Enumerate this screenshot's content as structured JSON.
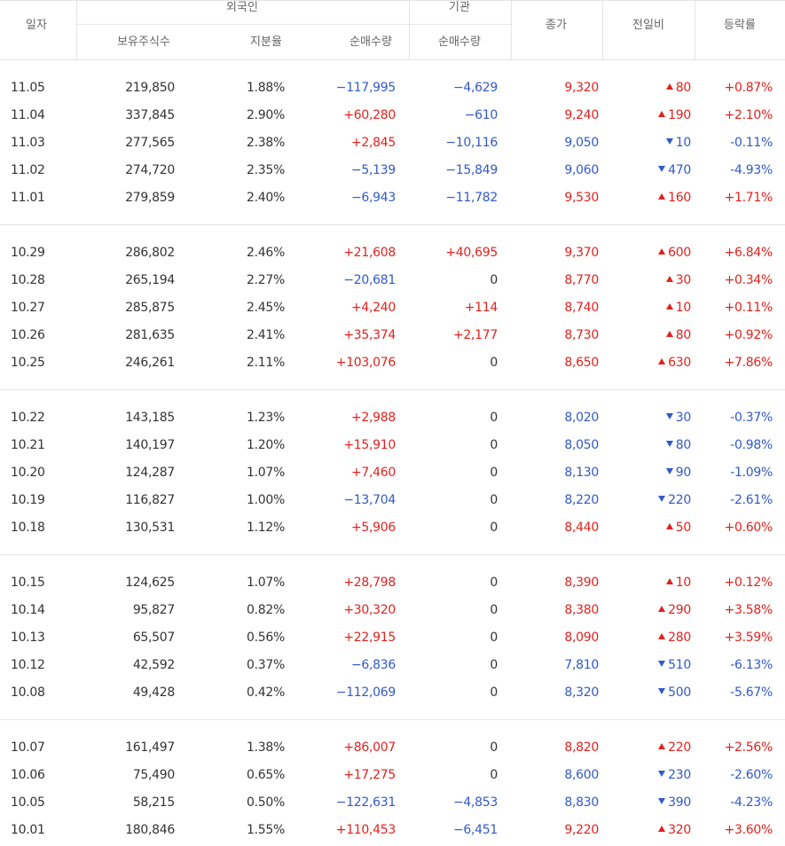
{
  "header": {
    "date": "일자",
    "foreign": "외국인",
    "inst": "기관",
    "close": "종가",
    "change": "전일비",
    "rate": "등락률",
    "holdings": "보유주식수",
    "ratio": "지분율",
    "foreign_net": "순매수량",
    "inst_net": "순매수량"
  },
  "groups": [
    {
      "rows": [
        [
          "11.05",
          "219,850",
          "1.88%",
          "−117,995",
          "−4,629",
          "9,320",
          "up",
          "80",
          "+0.87%"
        ],
        [
          "11.04",
          "337,845",
          "2.90%",
          "+60,280",
          "−610",
          "9,240",
          "up",
          "190",
          "+2.10%"
        ],
        [
          "11.03",
          "277,565",
          "2.38%",
          "+2,845",
          "−10,116",
          "9,050",
          "down",
          "10",
          "-0.11%"
        ],
        [
          "11.02",
          "274,720",
          "2.35%",
          "−5,139",
          "−15,849",
          "9,060",
          "down",
          "470",
          "-4.93%"
        ],
        [
          "11.01",
          "279,859",
          "2.40%",
          "−6,943",
          "−11,782",
          "9,530",
          "up",
          "160",
          "+1.71%"
        ]
      ]
    },
    {
      "rows": [
        [
          "10.29",
          "286,802",
          "2.46%",
          "+21,608",
          "+40,695",
          "9,370",
          "up",
          "600",
          "+6.84%"
        ],
        [
          "10.28",
          "265,194",
          "2.27%",
          "−20,681",
          "0",
          "8,770",
          "up",
          "30",
          "+0.34%"
        ],
        [
          "10.27",
          "285,875",
          "2.45%",
          "+4,240",
          "+114",
          "8,740",
          "up",
          "10",
          "+0.11%"
        ],
        [
          "10.26",
          "281,635",
          "2.41%",
          "+35,374",
          "+2,177",
          "8,730",
          "up",
          "80",
          "+0.92%"
        ],
        [
          "10.25",
          "246,261",
          "2.11%",
          "+103,076",
          "0",
          "8,650",
          "up",
          "630",
          "+7.86%"
        ]
      ]
    },
    {
      "rows": [
        [
          "10.22",
          "143,185",
          "1.23%",
          "+2,988",
          "0",
          "8,020",
          "down",
          "30",
          "-0.37%"
        ],
        [
          "10.21",
          "140,197",
          "1.20%",
          "+15,910",
          "0",
          "8,050",
          "down",
          "80",
          "-0.98%"
        ],
        [
          "10.20",
          "124,287",
          "1.07%",
          "+7,460",
          "0",
          "8,130",
          "down",
          "90",
          "-1.09%"
        ],
        [
          "10.19",
          "116,827",
          "1.00%",
          "−13,704",
          "0",
          "8,220",
          "down",
          "220",
          "-2.61%"
        ],
        [
          "10.18",
          "130,531",
          "1.12%",
          "+5,906",
          "0",
          "8,440",
          "up",
          "50",
          "+0.60%"
        ]
      ]
    },
    {
      "rows": [
        [
          "10.15",
          "124,625",
          "1.07%",
          "+28,798",
          "0",
          "8,390",
          "up",
          "10",
          "+0.12%"
        ],
        [
          "10.14",
          "95,827",
          "0.82%",
          "+30,320",
          "0",
          "8,380",
          "up",
          "290",
          "+3.58%"
        ],
        [
          "10.13",
          "65,507",
          "0.56%",
          "+22,915",
          "0",
          "8,090",
          "up",
          "280",
          "+3.59%"
        ],
        [
          "10.12",
          "42,592",
          "0.37%",
          "−6,836",
          "0",
          "7,810",
          "down",
          "510",
          "-6.13%"
        ],
        [
          "10.08",
          "49,428",
          "0.42%",
          "−112,069",
          "0",
          "8,320",
          "down",
          "500",
          "-5.67%"
        ]
      ]
    },
    {
      "rows": [
        [
          "10.07",
          "161,497",
          "1.38%",
          "+86,007",
          "0",
          "8,820",
          "up",
          "220",
          "+2.56%"
        ],
        [
          "10.06",
          "75,490",
          "0.65%",
          "+17,275",
          "0",
          "8,600",
          "down",
          "230",
          "-2.60%"
        ],
        [
          "10.05",
          "58,215",
          "0.50%",
          "−122,631",
          "−4,853",
          "8,830",
          "down",
          "390",
          "-4.23%"
        ],
        [
          "10.01",
          "180,846",
          "1.55%",
          "+110,453",
          "−6,451",
          "9,220",
          "up",
          "320",
          "+3.60%"
        ]
      ]
    }
  ]
}
